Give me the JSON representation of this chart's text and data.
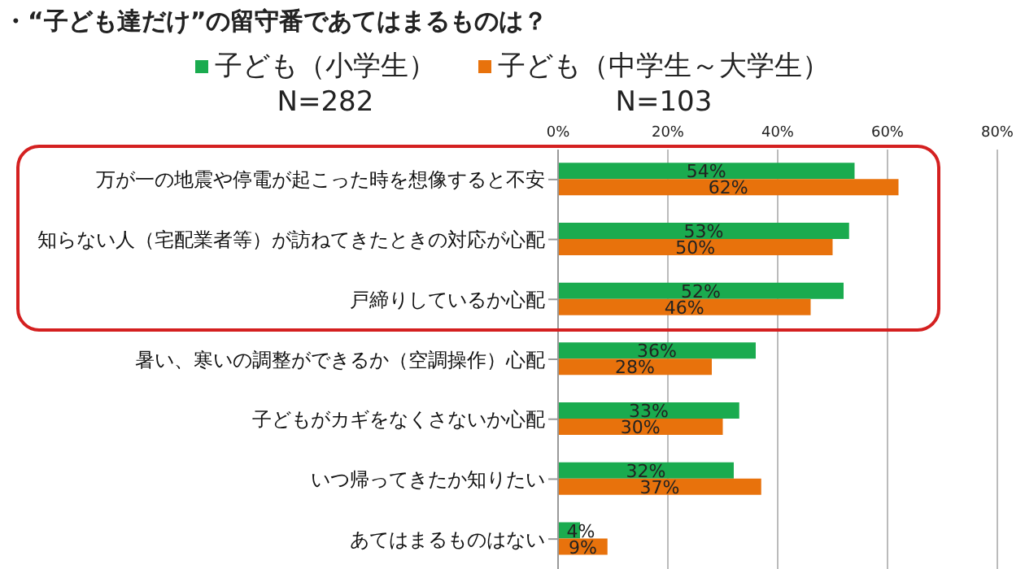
{
  "chart_data": {
    "type": "bar",
    "orientation": "horizontal",
    "title": "・“子ども達だけ”の留守番であてはまるものは？",
    "categories": [
      "万が一の地震や停電が起こった時を想像すると不安",
      "知らない人（宅配業者等）が訪ねてきたときの対応が心配",
      "戸締りしているか心配",
      "暑い、寒いの調整ができるか（空調操作）心配",
      "子どもがカギをなくさないか心配",
      "いつ帰ってきたか知りたい",
      "あてはまるものはない"
    ],
    "series": [
      {
        "name": "子ども（小学生）\nN=282",
        "color": "#1aab4f",
        "values": [
          54,
          53,
          52,
          36,
          33,
          32,
          4
        ],
        "value_labels": [
          "54%",
          "53%",
          "52%",
          "36%",
          "33%",
          "32%",
          "4%"
        ]
      },
      {
        "name": "子ども（中学生～大学生）\nN=103",
        "color": "#e8720c",
        "values": [
          62,
          50,
          46,
          28,
          30,
          37,
          9
        ],
        "value_labels": [
          "62%",
          "50%",
          "46%",
          "28%",
          "30%",
          "37%",
          "9%"
        ]
      }
    ],
    "xlim": [
      0,
      80
    ],
    "xticks": [
      {
        "value": 0,
        "label": "0%"
      },
      {
        "value": 20,
        "label": "20%"
      },
      {
        "value": 40,
        "label": "40%"
      },
      {
        "value": 60,
        "label": "60%"
      },
      {
        "value": 80,
        "label": "80%"
      }
    ],
    "grid": "x",
    "legend": "top"
  }
}
